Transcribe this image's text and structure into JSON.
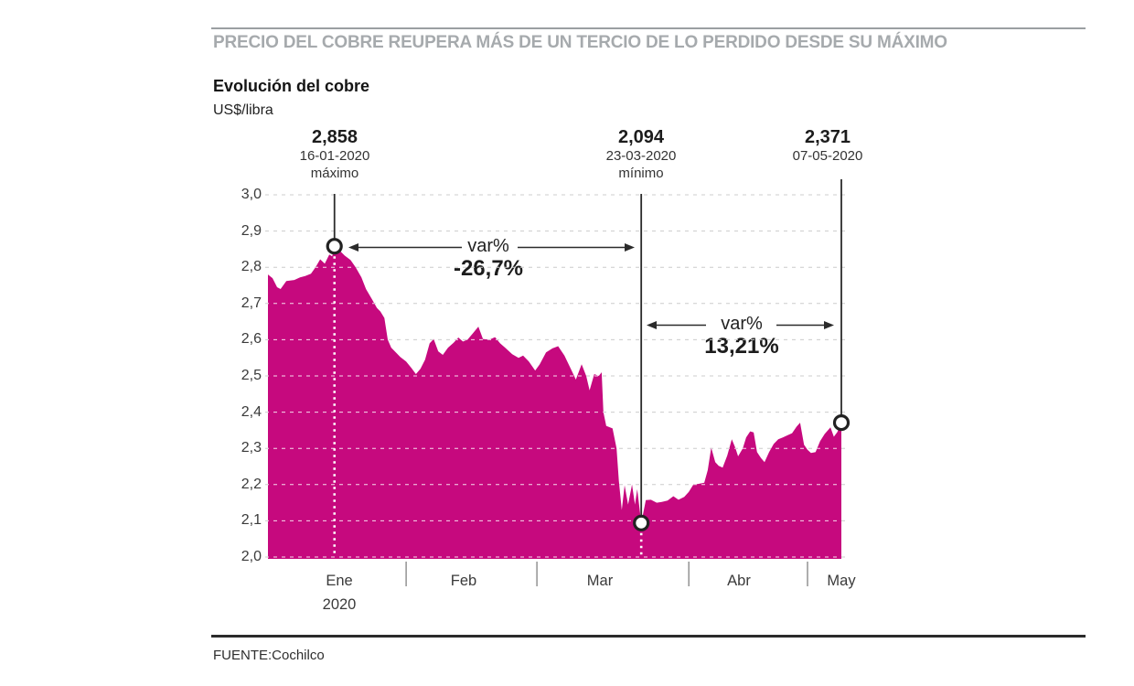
{
  "header": {
    "kicker": "PRECIO DEL COBRE REUPERA MÁS DE UN TERCIO DE LO PERDIDO DESDE SU MÁXIMO",
    "title": "Evolución del cobre",
    "unit": "US$/libra"
  },
  "source": {
    "label": "FUENTE:Cochilco"
  },
  "colors": {
    "area": "#c6097e",
    "grid": "#cccccc",
    "grid_on_area": "rgba(255,255,255,0.85)",
    "line_dark": "#2b2b2b",
    "kicker": "#a6aaad"
  },
  "chart_data": {
    "type": "area",
    "title": "Evolución del cobre",
    "xlabel": "",
    "ylabel": "US$/libra",
    "ylim": [
      2.0,
      3.0
    ],
    "grid": true,
    "y_ticks": [
      "3,0",
      "2,9",
      "2,8",
      "2,7",
      "2,6",
      "2,5",
      "2,4",
      "2,3",
      "2,2",
      "2,1",
      "2,0"
    ],
    "y_tick_values": [
      3.0,
      2.9,
      2.8,
      2.7,
      2.6,
      2.5,
      2.4,
      2.3,
      2.2,
      2.1,
      2.0
    ],
    "x_months": [
      {
        "label": "Ene",
        "t": 0.124
      },
      {
        "label": "Feb",
        "t": 0.341
      },
      {
        "label": "Mar",
        "t": 0.579
      },
      {
        "label": "Abr",
        "t": 0.821
      },
      {
        "label": "May",
        "t": 1.0
      }
    ],
    "x_year": "2020",
    "x_month_dividers_t": [
      0.241,
      0.469,
      0.734,
      0.941
    ],
    "annotations": [
      {
        "value": "2,858",
        "date": "16-01-2020",
        "note": "máximo",
        "t": 0.116,
        "v": 2.858
      },
      {
        "value": "2,094",
        "date": "23-03-2020",
        "note": "mínimo",
        "t": 0.651,
        "v": 2.094
      },
      {
        "value": "2,371",
        "date": "07-05-2020",
        "note": "",
        "t": 1.0,
        "v": 2.371
      }
    ],
    "var_annotations": [
      {
        "label": "var%",
        "value": "-26,7%"
      },
      {
        "label": "var%",
        "value": "13,21%"
      }
    ],
    "points": [
      [
        0.0,
        2.78
      ],
      [
        0.008,
        2.77
      ],
      [
        0.016,
        2.745
      ],
      [
        0.022,
        2.74
      ],
      [
        0.032,
        2.762
      ],
      [
        0.046,
        2.765
      ],
      [
        0.056,
        2.772
      ],
      [
        0.065,
        2.776
      ],
      [
        0.075,
        2.782
      ],
      [
        0.083,
        2.8
      ],
      [
        0.091,
        2.822
      ],
      [
        0.099,
        2.81
      ],
      [
        0.107,
        2.835
      ],
      [
        0.112,
        2.83
      ],
      [
        0.116,
        2.858
      ],
      [
        0.124,
        2.848
      ],
      [
        0.134,
        2.832
      ],
      [
        0.144,
        2.82
      ],
      [
        0.153,
        2.8
      ],
      [
        0.163,
        2.772
      ],
      [
        0.171,
        2.74
      ],
      [
        0.182,
        2.71
      ],
      [
        0.19,
        2.688
      ],
      [
        0.196,
        2.678
      ],
      [
        0.203,
        2.66
      ],
      [
        0.209,
        2.6
      ],
      [
        0.215,
        2.578
      ],
      [
        0.223,
        2.565
      ],
      [
        0.231,
        2.552
      ],
      [
        0.241,
        2.54
      ],
      [
        0.25,
        2.522
      ],
      [
        0.258,
        2.505
      ],
      [
        0.266,
        2.52
      ],
      [
        0.274,
        2.545
      ],
      [
        0.282,
        2.59
      ],
      [
        0.289,
        2.602
      ],
      [
        0.297,
        2.568
      ],
      [
        0.305,
        2.558
      ],
      [
        0.314,
        2.578
      ],
      [
        0.324,
        2.592
      ],
      [
        0.332,
        2.606
      ],
      [
        0.34,
        2.595
      ],
      [
        0.348,
        2.6
      ],
      [
        0.357,
        2.617
      ],
      [
        0.367,
        2.636
      ],
      [
        0.375,
        2.602
      ],
      [
        0.386,
        2.6
      ],
      [
        0.396,
        2.607
      ],
      [
        0.405,
        2.59
      ],
      [
        0.415,
        2.576
      ],
      [
        0.426,
        2.56
      ],
      [
        0.437,
        2.55
      ],
      [
        0.445,
        2.556
      ],
      [
        0.455,
        2.54
      ],
      [
        0.466,
        2.515
      ],
      [
        0.474,
        2.532
      ],
      [
        0.485,
        2.565
      ],
      [
        0.496,
        2.576
      ],
      [
        0.506,
        2.582
      ],
      [
        0.517,
        2.556
      ],
      [
        0.528,
        2.52
      ],
      [
        0.537,
        2.49
      ],
      [
        0.547,
        2.532
      ],
      [
        0.555,
        2.5
      ],
      [
        0.561,
        2.46
      ],
      [
        0.569,
        2.505
      ],
      [
        0.577,
        2.5
      ],
      [
        0.582,
        2.51
      ],
      [
        0.585,
        2.4
      ],
      [
        0.59,
        2.362
      ],
      [
        0.601,
        2.355
      ],
      [
        0.608,
        2.3
      ],
      [
        0.612,
        2.21
      ],
      [
        0.617,
        2.13
      ],
      [
        0.622,
        2.198
      ],
      [
        0.628,
        2.145
      ],
      [
        0.635,
        2.2
      ],
      [
        0.64,
        2.145
      ],
      [
        0.644,
        2.187
      ],
      [
        0.651,
        2.094
      ],
      [
        0.659,
        2.157
      ],
      [
        0.668,
        2.158
      ],
      [
        0.678,
        2.15
      ],
      [
        0.687,
        2.152
      ],
      [
        0.697,
        2.156
      ],
      [
        0.707,
        2.168
      ],
      [
        0.716,
        2.158
      ],
      [
        0.726,
        2.166
      ],
      [
        0.734,
        2.18
      ],
      [
        0.742,
        2.2
      ],
      [
        0.751,
        2.202
      ],
      [
        0.761,
        2.205
      ],
      [
        0.767,
        2.24
      ],
      [
        0.773,
        2.302
      ],
      [
        0.78,
        2.262
      ],
      [
        0.786,
        2.252
      ],
      [
        0.793,
        2.247
      ],
      [
        0.801,
        2.28
      ],
      [
        0.809,
        2.325
      ],
      [
        0.815,
        2.302
      ],
      [
        0.82,
        2.278
      ],
      [
        0.828,
        2.3
      ],
      [
        0.834,
        2.33
      ],
      [
        0.841,
        2.347
      ],
      [
        0.847,
        2.344
      ],
      [
        0.853,
        2.29
      ],
      [
        0.86,
        2.273
      ],
      [
        0.866,
        2.262
      ],
      [
        0.874,
        2.29
      ],
      [
        0.882,
        2.312
      ],
      [
        0.89,
        2.325
      ],
      [
        0.898,
        2.33
      ],
      [
        0.906,
        2.336
      ],
      [
        0.914,
        2.342
      ],
      [
        0.922,
        2.36
      ],
      [
        0.928,
        2.371
      ],
      [
        0.935,
        2.31
      ],
      [
        0.941,
        2.296
      ],
      [
        0.947,
        2.287
      ],
      [
        0.955,
        2.29
      ],
      [
        0.963,
        2.32
      ],
      [
        0.971,
        2.34
      ],
      [
        0.981,
        2.358
      ],
      [
        0.987,
        2.332
      ],
      [
        0.993,
        2.345
      ],
      [
        1.0,
        2.371
      ]
    ]
  }
}
